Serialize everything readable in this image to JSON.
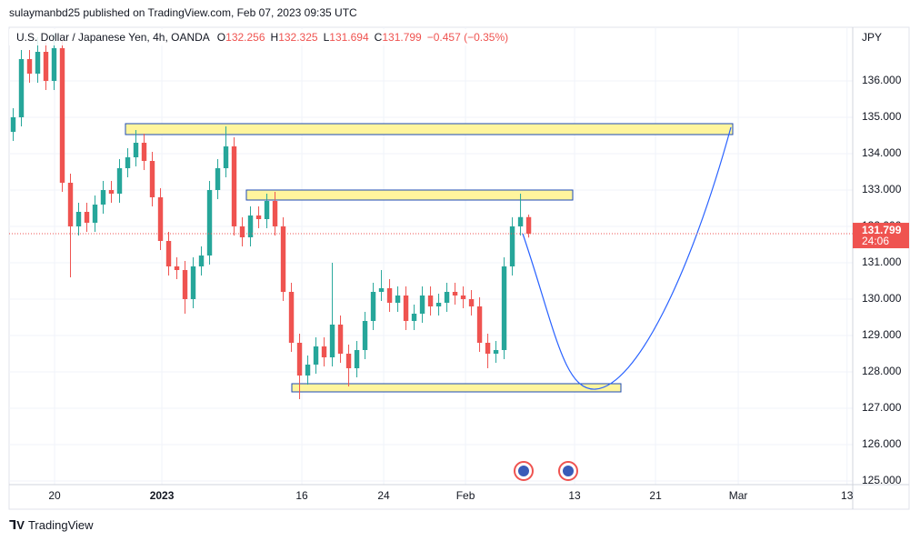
{
  "header": {
    "published": "sulaymanbd25 published on TradingView.com, Feb 07, 2023 09:35 UTC"
  },
  "footer": {
    "brand": "TradingView"
  },
  "chart_data": {
    "type": "candlestick",
    "symbol": "U.S. Dollar / Japanese Yen, 4h, OANDA",
    "ohlc_letters": [
      "O",
      "H",
      "L",
      "C"
    ],
    "ohlc": [
      132.256,
      132.325,
      131.694,
      131.799
    ],
    "change": "−0.457 (−0.35%)",
    "currency": "JPY",
    "countdown": "24:06",
    "up_color": "#26a69a",
    "down_color": "#ef5350",
    "x": [
      0,
      1,
      2,
      3,
      4,
      5,
      6,
      7,
      8,
      9,
      10,
      11,
      12,
      13,
      14,
      15,
      16,
      17,
      18,
      19,
      20,
      21,
      22,
      23,
      24,
      25,
      26,
      27,
      28,
      29,
      30,
      31,
      32,
      33,
      34,
      35,
      36,
      37,
      38,
      39,
      40,
      41,
      42,
      43,
      44,
      45,
      46,
      47,
      48,
      49,
      50,
      51,
      52,
      53,
      54,
      55,
      56,
      57,
      58,
      59,
      60,
      61,
      62,
      63
    ],
    "open": [
      134.6,
      135.0,
      136.6,
      136.2,
      136.8,
      136.0,
      136.9,
      133.2,
      132.0,
      132.4,
      132.1,
      132.6,
      133.0,
      132.9,
      133.6,
      133.9,
      134.3,
      133.8,
      132.8,
      131.6,
      130.9,
      130.8,
      130.0,
      130.9,
      131.2,
      133.0,
      133.6,
      134.2,
      132.0,
      131.7,
      132.3,
      132.2,
      132.7,
      132.0,
      130.2,
      128.8,
      127.9,
      128.2,
      128.7,
      128.4,
      129.3,
      128.5,
      128.1,
      128.6,
      129.4,
      130.2,
      130.3,
      129.9,
      130.1,
      129.4,
      129.6,
      130.1,
      129.8,
      129.9,
      130.2,
      130.1,
      130.0,
      129.8,
      128.8,
      128.5,
      128.6,
      130.9,
      132.0,
      132.256
    ],
    "high": [
      135.25,
      136.85,
      136.85,
      137.2,
      137.05,
      137.3,
      137.15,
      133.45,
      132.65,
      132.65,
      132.85,
      133.25,
      133.25,
      133.85,
      134.15,
      134.65,
      134.55,
      134.05,
      133.05,
      131.85,
      131.15,
      131.05,
      131.15,
      131.45,
      133.25,
      133.85,
      134.75,
      134.45,
      132.25,
      132.55,
      132.55,
      132.9,
      132.95,
      132.25,
      130.45,
      129.05,
      128.45,
      128.95,
      128.95,
      131.0,
      129.55,
      128.75,
      128.85,
      129.65,
      130.45,
      130.8,
      130.55,
      130.35,
      130.35,
      129.85,
      130.35,
      130.35,
      130.15,
      130.45,
      130.45,
      130.35,
      130.25,
      130.05,
      129.05,
      128.85,
      131.15,
      132.25,
      132.9,
      132.325
    ],
    "low": [
      134.35,
      134.75,
      135.95,
      135.95,
      135.75,
      135.75,
      132.95,
      130.6,
      131.75,
      131.85,
      131.85,
      132.35,
      132.65,
      132.65,
      133.35,
      133.65,
      133.55,
      132.55,
      131.35,
      130.65,
      130.55,
      129.6,
      129.75,
      130.65,
      130.95,
      132.75,
      133.35,
      131.75,
      131.45,
      131.45,
      131.95,
      131.95,
      131.75,
      129.95,
      128.55,
      127.25,
      127.65,
      127.95,
      128.15,
      128.15,
      128.25,
      127.6,
      127.85,
      128.35,
      129.15,
      129.95,
      129.65,
      129.65,
      129.15,
      129.15,
      129.35,
      129.55,
      129.55,
      129.65,
      129.85,
      129.75,
      129.55,
      128.55,
      128.1,
      128.25,
      128.35,
      130.65,
      131.75,
      131.694
    ],
    "close": [
      135.0,
      136.6,
      136.2,
      136.8,
      136.0,
      136.9,
      133.2,
      132.0,
      132.4,
      132.1,
      132.6,
      133.0,
      132.9,
      133.6,
      133.9,
      134.3,
      133.8,
      132.8,
      131.6,
      130.9,
      130.8,
      130.0,
      130.9,
      131.2,
      133.0,
      133.6,
      134.2,
      132.0,
      131.7,
      132.3,
      132.2,
      132.7,
      132.0,
      130.2,
      128.8,
      127.9,
      128.2,
      128.7,
      128.4,
      129.3,
      128.5,
      128.1,
      128.6,
      129.4,
      130.2,
      130.3,
      129.9,
      130.1,
      129.4,
      129.6,
      130.1,
      129.8,
      129.9,
      130.2,
      130.1,
      130.0,
      129.8,
      128.8,
      128.5,
      128.6,
      130.9,
      132.0,
      132.256,
      131.799
    ],
    "xlim": [
      -0.5,
      102.6
    ],
    "xticks": [
      {
        "value": 5.06,
        "label": "20"
      },
      {
        "value": 18.17,
        "label": "2023"
      },
      {
        "value": 35.28,
        "label": "16"
      },
      {
        "value": 45.28,
        "label": "24"
      },
      {
        "value": 55.28,
        "label": "Feb"
      },
      {
        "value": 68.61,
        "label": "13"
      },
      {
        "value": 78.5,
        "label": "21"
      },
      {
        "value": 88.61,
        "label": "Mar"
      },
      {
        "value": 101.9,
        "label": "13"
      }
    ],
    "ylim": [
      124.9,
      137.475
    ],
    "yticks": [
      {
        "value": 125,
        "label": "125.000"
      },
      {
        "value": 126,
        "label": "126.000"
      },
      {
        "value": 127,
        "label": "127.000"
      },
      {
        "value": 128,
        "label": "128.000"
      },
      {
        "value": 129,
        "label": "129.000"
      },
      {
        "value": 130,
        "label": "130.000"
      },
      {
        "value": 131,
        "label": "131.000"
      },
      {
        "value": 132,
        "label": "132.000"
      },
      {
        "value": 133,
        "label": "133.000"
      },
      {
        "value": 134,
        "label": "134.000"
      },
      {
        "value": 135,
        "label": "135.000"
      },
      {
        "value": 136,
        "label": "136.000"
      }
    ],
    "grid": true
  }
}
